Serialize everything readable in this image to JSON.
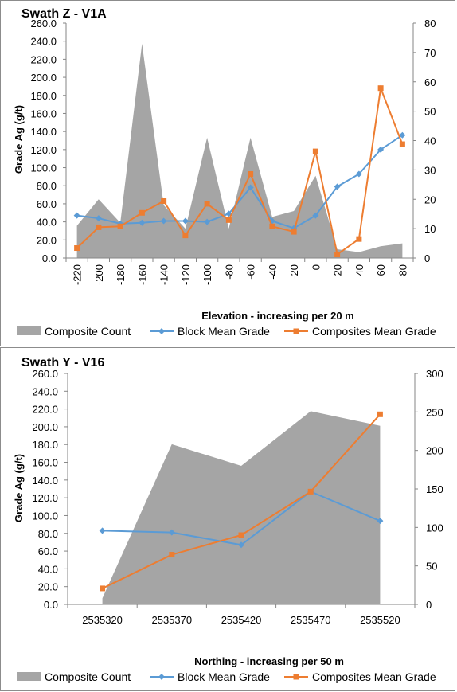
{
  "colors": {
    "count": "#a5a5a5",
    "block": "#5b9bd5",
    "composites": "#ed7d31",
    "axis": "#868686"
  },
  "chart_data": [
    {
      "type": "line",
      "title": "Swath Z - V1A",
      "xlabel": "Elevation - increasing per 20 m",
      "ylabel": "Grade Ag (g/t)",
      "ylim": [
        0,
        260
      ],
      "y_ticks": [
        "0.0",
        "20.0",
        "40.0",
        "60.0",
        "80.0",
        "100.0",
        "120.0",
        "140.0",
        "160.0",
        "180.0",
        "200.0",
        "220.0",
        "240.0",
        "260.0"
      ],
      "y2lim": [
        0,
        80
      ],
      "y2_ticks": [
        "0",
        "10",
        "20",
        "30",
        "40",
        "50",
        "60",
        "70",
        "80"
      ],
      "categories": [
        "-220",
        "-200",
        "-180",
        "-160",
        "-140",
        "-120",
        "-100",
        "-80",
        "-60",
        "-40",
        "-20",
        "0",
        "20",
        "40",
        "60",
        "80"
      ],
      "legend": [
        "Composite Count",
        "Block Mean Grade",
        "Composites Mean Grade"
      ],
      "legend_position": "bottom",
      "series": [
        {
          "name": "Composite Count",
          "type": "area",
          "axis": "secondary",
          "values": [
            11,
            20,
            12,
            73,
            18,
            10,
            41,
            10,
            41,
            14,
            16,
            28,
            3,
            2,
            4,
            5
          ]
        },
        {
          "name": "Block Mean Grade",
          "type": "line",
          "axis": "primary",
          "marker": "diamond",
          "values": [
            47,
            44,
            38,
            39,
            41,
            41,
            40,
            49,
            78,
            41,
            33,
            47,
            79,
            93,
            120,
            136
          ]
        },
        {
          "name": "Composites Mean Grade",
          "type": "line",
          "axis": "primary",
          "marker": "square",
          "values": [
            11,
            34,
            35,
            50,
            63,
            25,
            60,
            42,
            93,
            35,
            29,
            118,
            4,
            21,
            188,
            126
          ]
        }
      ]
    },
    {
      "type": "line",
      "title": "Swath Y - V16",
      "xlabel": "Northing - increasing per 50 m",
      "ylabel": "Grade Ag (g/t)",
      "ylim": [
        0,
        260
      ],
      "y_ticks": [
        "0.0",
        "20.0",
        "40.0",
        "60.0",
        "80.0",
        "100.0",
        "120.0",
        "140.0",
        "160.0",
        "180.0",
        "200.0",
        "220.0",
        "240.0",
        "260.0"
      ],
      "y2lim": [
        0,
        300
      ],
      "y2_ticks": [
        "0",
        "50",
        "100",
        "150",
        "200",
        "250",
        "300"
      ],
      "categories": [
        "2535320",
        "2535370",
        "2535420",
        "2535470",
        "2535520"
      ],
      "legend": [
        "Composite Count",
        "Block Mean Grade",
        "Composites Mean Grade"
      ],
      "legend_position": "bottom",
      "series": [
        {
          "name": "Composite Count",
          "type": "area",
          "axis": "secondary",
          "values": [
            8,
            208,
            180,
            251,
            232
          ]
        },
        {
          "name": "Block Mean Grade",
          "type": "line",
          "axis": "primary",
          "marker": "diamond",
          "values": [
            83,
            81,
            67,
            127,
            94
          ]
        },
        {
          "name": "Composites Mean Grade",
          "type": "line",
          "axis": "primary",
          "marker": "square",
          "values": [
            18,
            56,
            78,
            127,
            214
          ]
        }
      ]
    }
  ]
}
